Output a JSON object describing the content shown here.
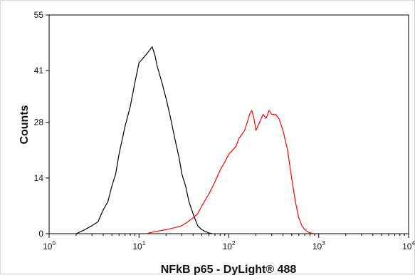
{
  "chart_data": {
    "type": "line",
    "title": "",
    "xlabel": "NFkB p65 - DyLight® 488",
    "ylabel": "Counts",
    "x_scale": "log",
    "xlim": [
      1,
      10000
    ],
    "ylim": [
      0,
      55
    ],
    "x_ticks": [
      {
        "base": "10",
        "exp": "0"
      },
      {
        "base": "10",
        "exp": "1"
      },
      {
        "base": "10",
        "exp": "2"
      },
      {
        "base": "10",
        "exp": "3"
      },
      {
        "base": "10",
        "exp": "4"
      }
    ],
    "y_ticks": [
      "0",
      "14",
      "28",
      "41",
      "55"
    ],
    "grid": false,
    "legend": "none",
    "series": [
      {
        "color": "#000000",
        "x": [
          2,
          2.5,
          3,
          3.5,
          4,
          4.5,
          5,
          5.5,
          6,
          7,
          8,
          9,
          10,
          11,
          12,
          13,
          14,
          15,
          16,
          18,
          20,
          22,
          25,
          28,
          30,
          33,
          36,
          40,
          45,
          50,
          55,
          60,
          65
        ],
        "y": [
          0,
          1,
          2,
          3,
          6,
          8,
          12,
          15,
          20,
          27,
          32,
          38,
          43,
          44,
          45,
          46,
          47,
          45,
          42,
          38,
          34,
          30,
          24,
          19,
          15,
          12,
          8,
          5,
          2,
          1,
          0.5,
          0.2,
          0
        ]
      },
      {
        "color": "#ff0000",
        "x": [
          12,
          15,
          20,
          25,
          30,
          35,
          40,
          45,
          50,
          60,
          70,
          80,
          90,
          100,
          110,
          120,
          130,
          140,
          150,
          160,
          170,
          180,
          190,
          200,
          220,
          240,
          260,
          280,
          300,
          330,
          360,
          400,
          450,
          500,
          550,
          600,
          650,
          700,
          750,
          800,
          850,
          900
        ],
        "y": [
          0,
          0.5,
          1,
          1.5,
          2,
          3,
          4,
          5,
          7,
          10,
          13,
          16,
          18,
          20,
          21,
          22,
          24,
          25,
          26,
          28,
          30,
          31,
          29,
          26,
          28,
          30,
          29,
          31,
          30,
          30,
          29,
          26,
          21,
          14,
          8,
          4,
          2,
          1,
          0.5,
          0.2,
          0.1,
          0
        ]
      }
    ]
  }
}
